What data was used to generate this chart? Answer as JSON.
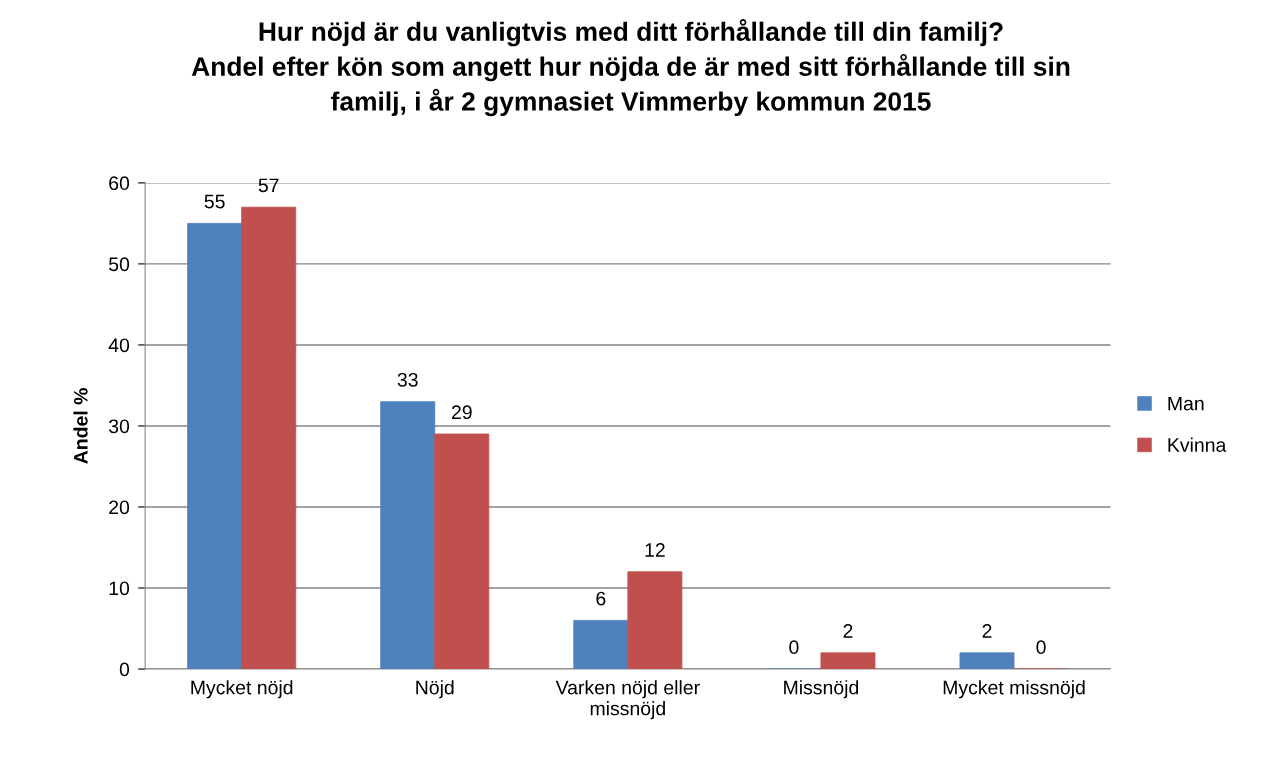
{
  "chart_data": {
    "type": "bar",
    "title": "Hur nöjd är du vanligtvis med ditt förhållande till din familj?",
    "subtitle": "Andel efter kön som angett hur nöjda de är med sitt förhållande till sin familj, i år 2 gymnasiet Vimmerby kommun 2015",
    "ylabel": "Andel %",
    "categories": [
      "Mycket nöjd",
      "Nöjd",
      "Varken nöjd eller missnöjd",
      "Missnöjd",
      "Mycket missnöjd"
    ],
    "series": [
      {
        "name": "Man",
        "color": "#4f81bd",
        "values": [
          55,
          33,
          6,
          0,
          2
        ]
      },
      {
        "name": "Kvinna",
        "color": "#c0504d",
        "values": [
          57,
          29,
          12,
          2,
          0
        ]
      }
    ],
    "ylim": [
      0,
      60
    ],
    "yticks": [
      0,
      10,
      20,
      30,
      40,
      50,
      60
    ],
    "grid": "y",
    "legend": "right",
    "data_labels": true
  }
}
